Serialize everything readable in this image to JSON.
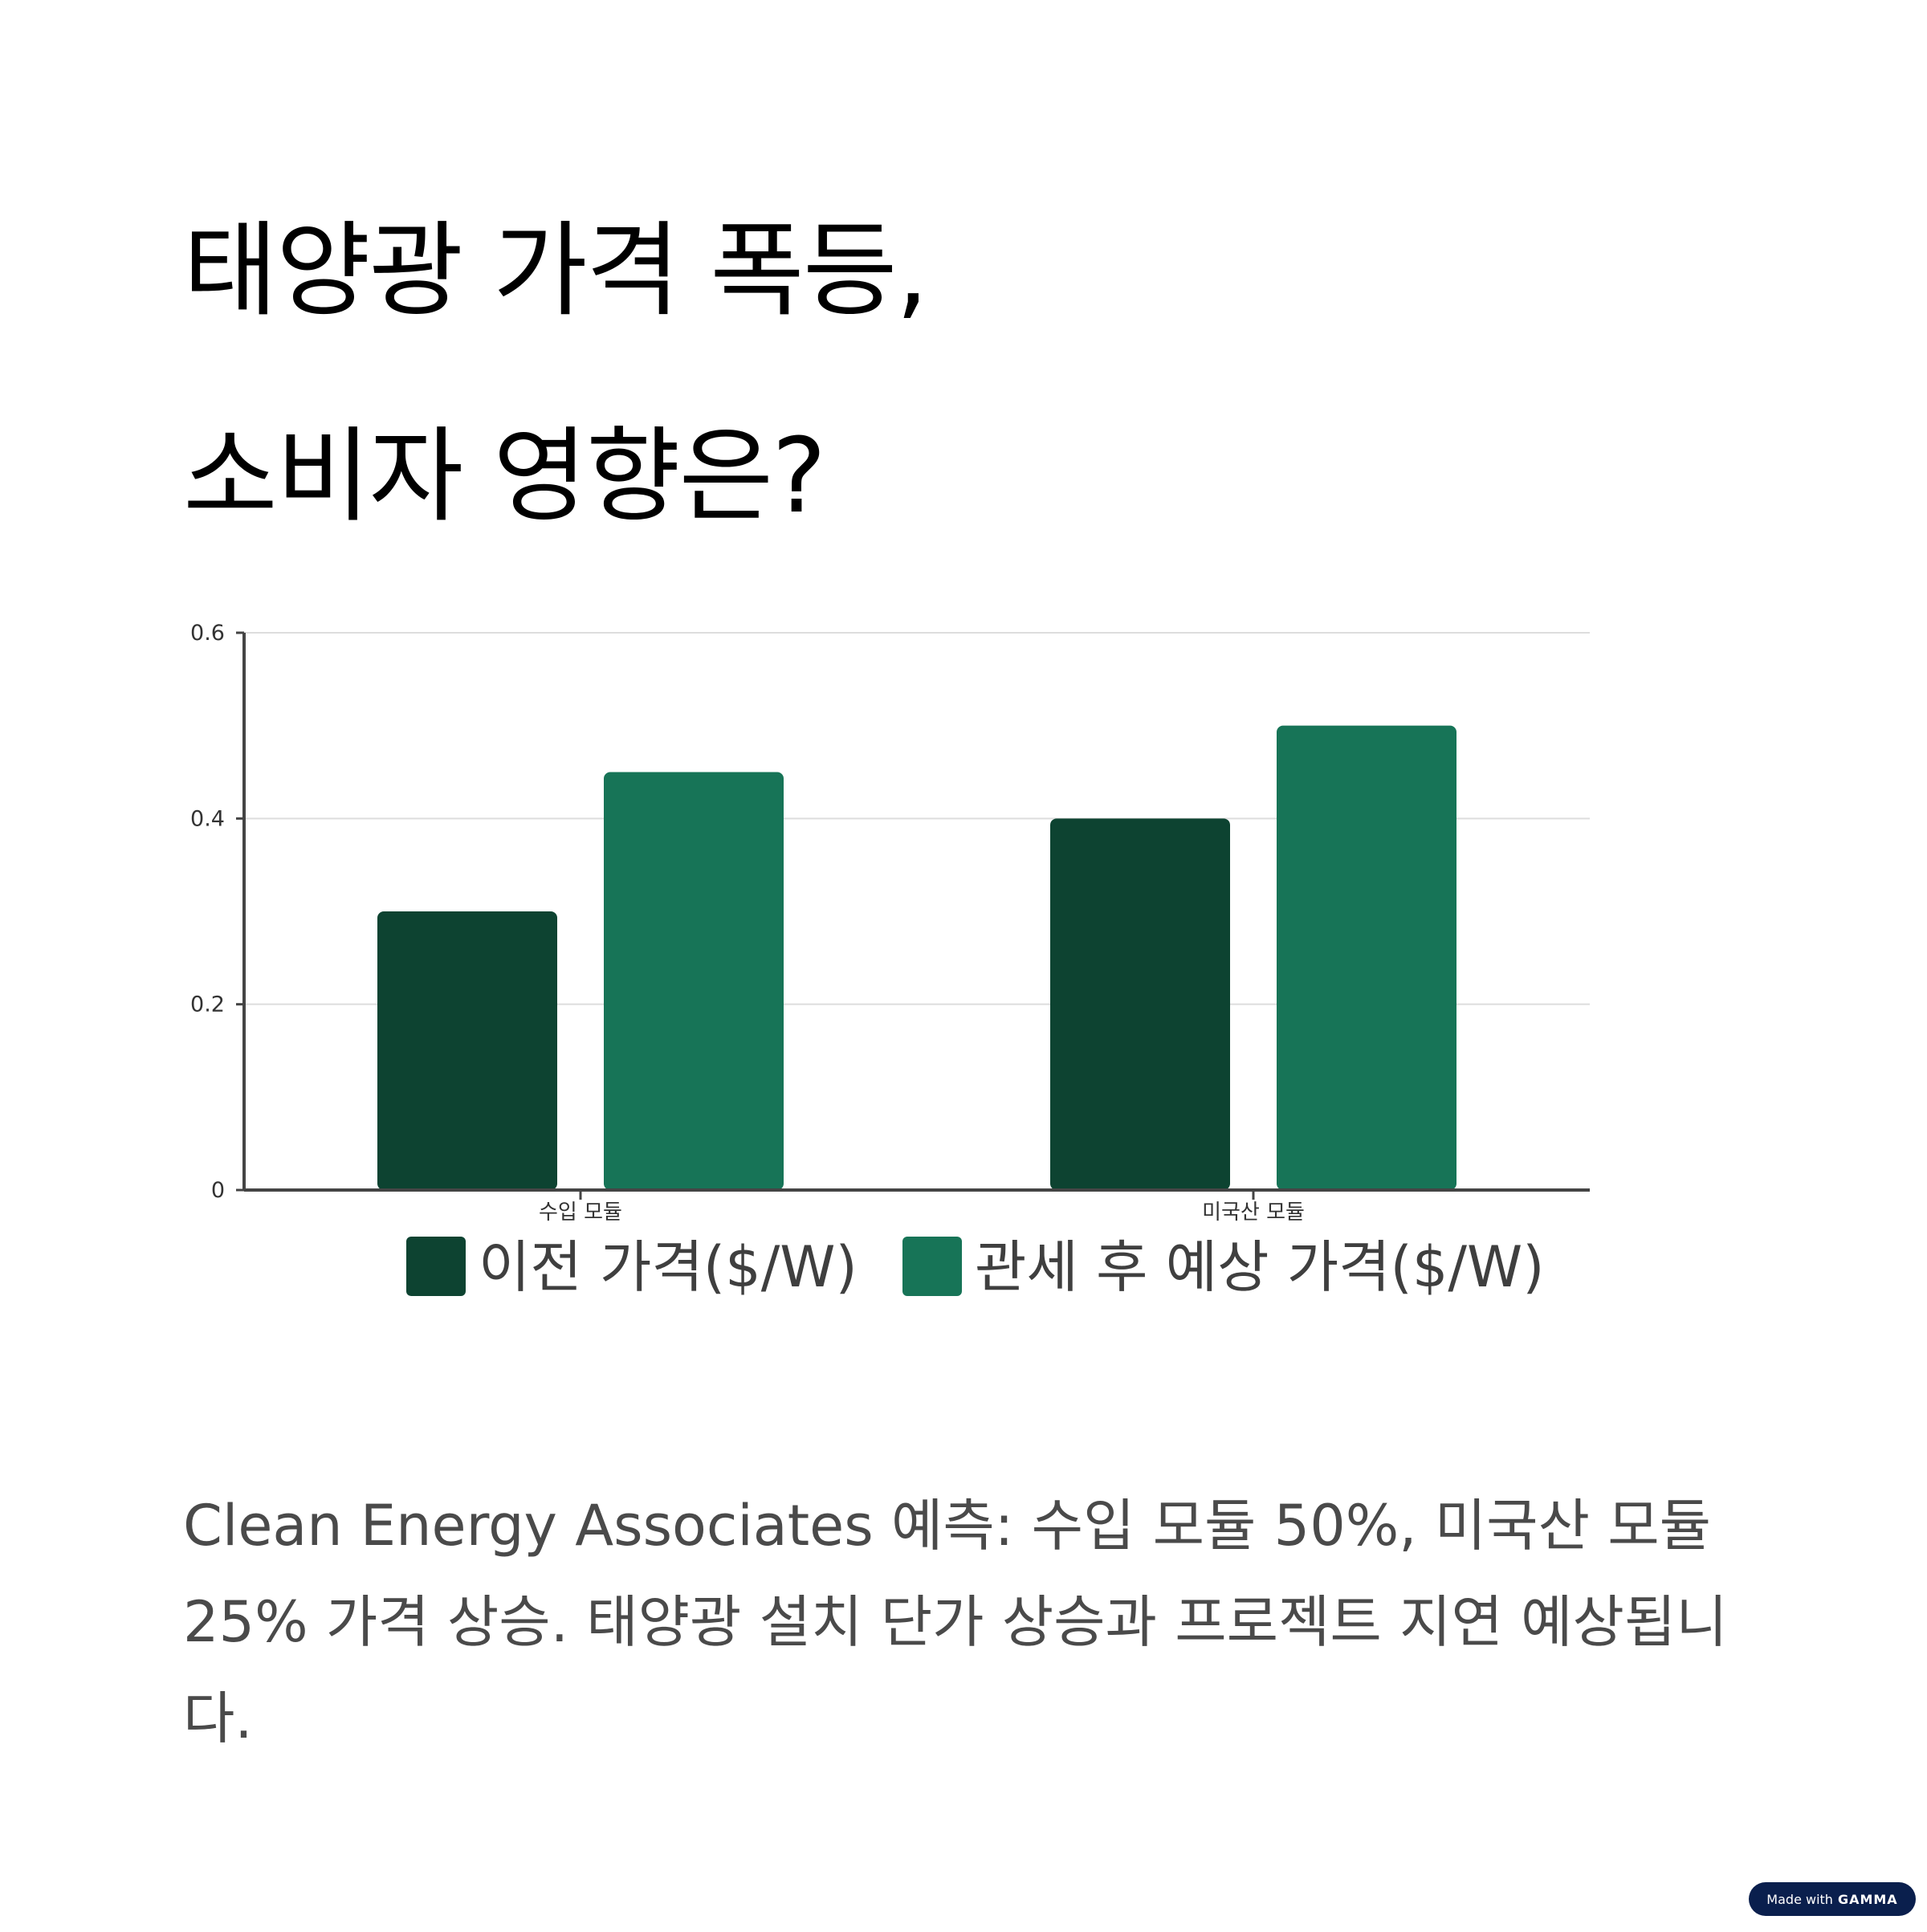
{
  "title": {
    "line1": "태양광 가격 폭등,",
    "line2": "소비자 영향은?"
  },
  "description": "Clean Energy Associates 예측: 수입 모듈 50%, 미국산 모듈 25% 가격 상승. 태양광 설치 단가 상승과 프로젝트 지연 예상됩니다.",
  "badge": {
    "prefix": "Made with",
    "brand": "GAMMA"
  },
  "colors": {
    "before": "#0d4331",
    "after": "#177457",
    "axis": "#444444",
    "grid": "#dddddd"
  },
  "chart_data": {
    "type": "bar",
    "categories": [
      "수입 모듈",
      "미국산 모듈"
    ],
    "series": [
      {
        "name": "이전 가격($/W)",
        "values": [
          0.3,
          0.4
        ]
      },
      {
        "name": "관세 후 예상 가격($/W)",
        "values": [
          0.45,
          0.5
        ]
      }
    ],
    "ylim": [
      0,
      0.6
    ],
    "yticks": [
      0,
      0.2,
      0.4,
      0.6
    ],
    "ytick_labels": [
      "0",
      "0.2",
      "0.4",
      "0.6"
    ],
    "grid": true,
    "legend": "bottom"
  }
}
